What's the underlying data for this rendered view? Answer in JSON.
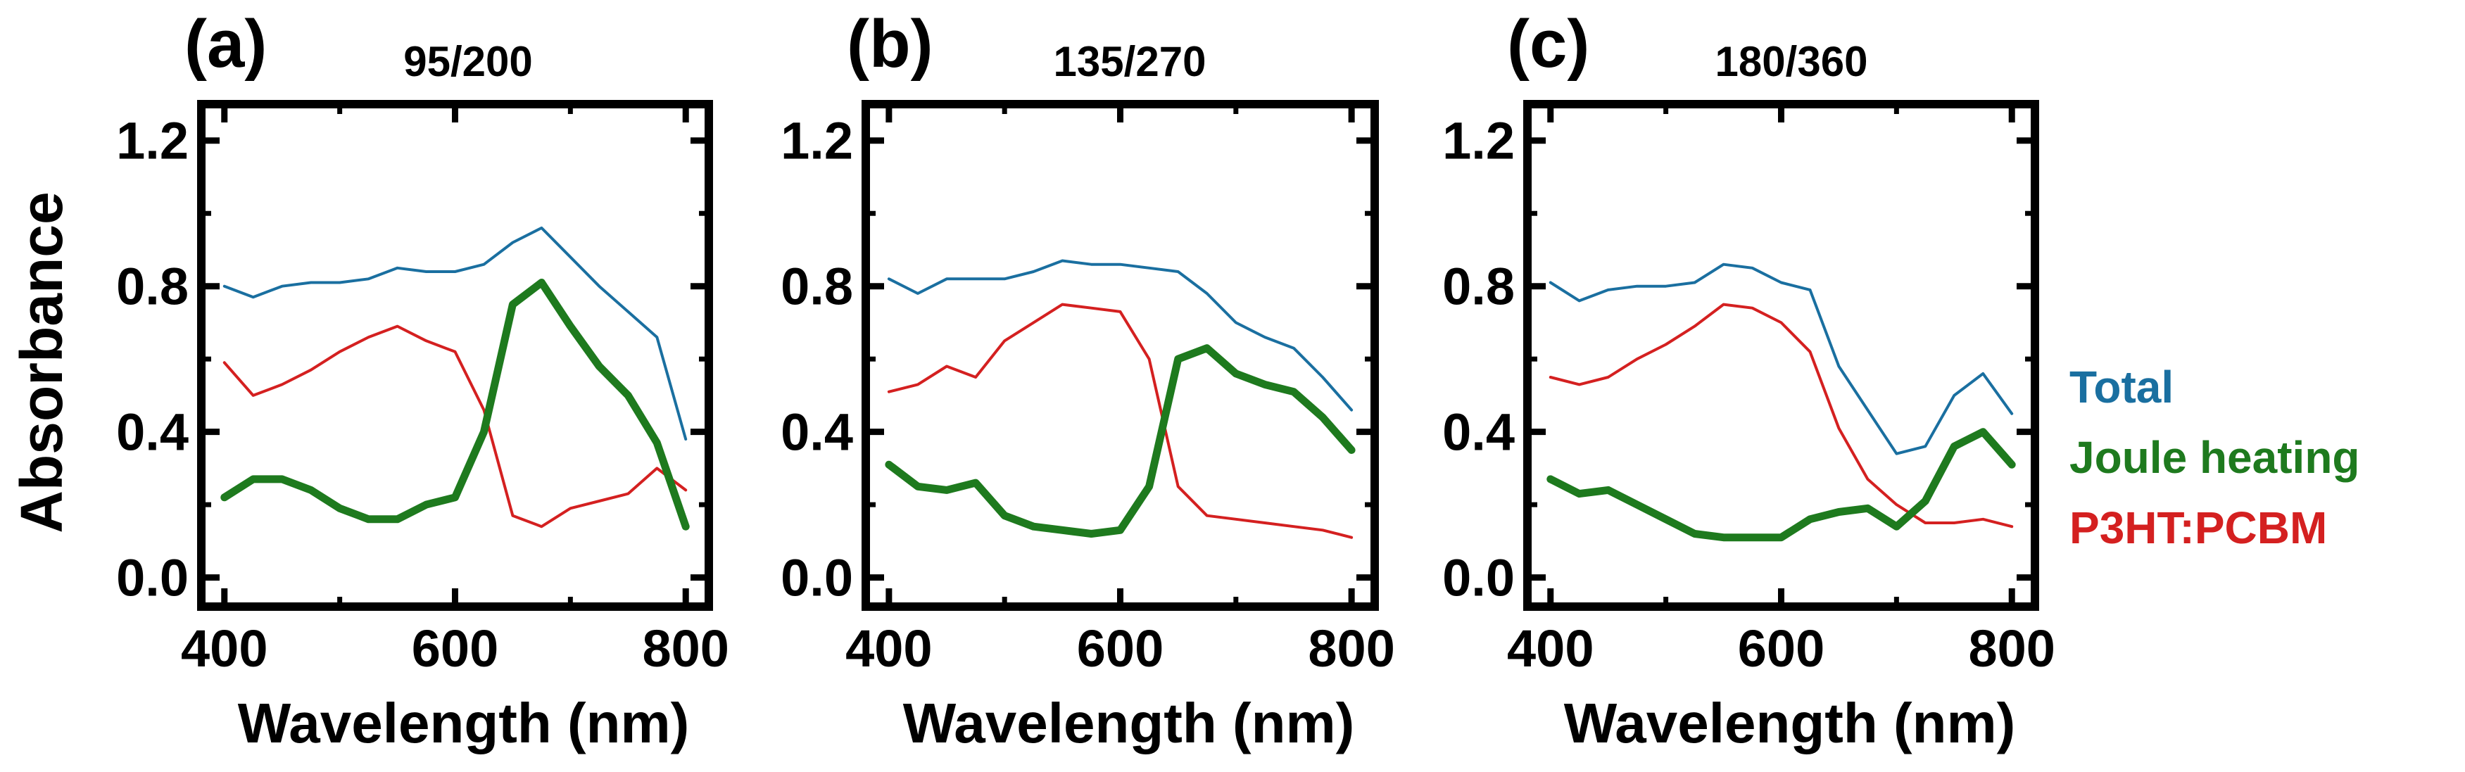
{
  "ylabel": "Absorbance",
  "legend": [
    {
      "label": "Total",
      "color": "#1a6fa0"
    },
    {
      "label": "Joule heating",
      "color": "#1e7a1e"
    },
    {
      "label": "P3HT:PCBM",
      "color": "#d42020"
    }
  ],
  "chart_data": [
    {
      "type": "line",
      "panel": "(a)",
      "title": "95/200",
      "xlabel": "Wavelength (nm)",
      "ylabel": "Absorbance",
      "xlim": [
        380,
        820
      ],
      "ylim": [
        -0.08,
        1.3
      ],
      "xticks": [
        "400",
        "600",
        "800"
      ],
      "yticks": [
        "0.0",
        "0.4",
        "0.8",
        "1.2"
      ],
      "x": [
        400,
        425,
        450,
        475,
        500,
        525,
        550,
        575,
        600,
        625,
        650,
        675,
        700,
        725,
        750,
        775,
        800
      ],
      "series": [
        {
          "name": "Total",
          "values": [
            0.8,
            0.77,
            0.8,
            0.81,
            0.81,
            0.82,
            0.85,
            0.84,
            0.84,
            0.86,
            0.92,
            0.96,
            0.88,
            0.8,
            0.73,
            0.66,
            0.38
          ]
        },
        {
          "name": "Joule heating",
          "values": [
            0.22,
            0.27,
            0.27,
            0.24,
            0.19,
            0.16,
            0.16,
            0.2,
            0.22,
            0.4,
            0.75,
            0.81,
            0.69,
            0.58,
            0.5,
            0.37,
            0.14
          ]
        },
        {
          "name": "P3HT:PCBM",
          "values": [
            0.59,
            0.5,
            0.53,
            0.57,
            0.62,
            0.66,
            0.69,
            0.65,
            0.62,
            0.46,
            0.17,
            0.14,
            0.19,
            0.21,
            0.23,
            0.3,
            0.24
          ]
        }
      ]
    },
    {
      "type": "line",
      "panel": "(b)",
      "title": "135/270",
      "xlabel": "Wavelength (nm)",
      "ylabel": "",
      "xlim": [
        380,
        820
      ],
      "ylim": [
        -0.08,
        1.3
      ],
      "xticks": [
        "400",
        "600",
        "800"
      ],
      "yticks": [
        "0.0",
        "0.4",
        "0.8",
        "1.2"
      ],
      "x": [
        400,
        425,
        450,
        475,
        500,
        525,
        550,
        575,
        600,
        625,
        650,
        675,
        700,
        725,
        750,
        775,
        800
      ],
      "series": [
        {
          "name": "Total",
          "values": [
            0.82,
            0.78,
            0.82,
            0.82,
            0.82,
            0.84,
            0.87,
            0.86,
            0.86,
            0.85,
            0.84,
            0.78,
            0.7,
            0.66,
            0.63,
            0.55,
            0.46
          ]
        },
        {
          "name": "Joule heating",
          "values": [
            0.31,
            0.25,
            0.24,
            0.26,
            0.17,
            0.14,
            0.13,
            0.12,
            0.13,
            0.25,
            0.6,
            0.63,
            0.56,
            0.53,
            0.51,
            0.44,
            0.35
          ]
        },
        {
          "name": "P3HT:PCBM",
          "values": [
            0.51,
            0.53,
            0.58,
            0.55,
            0.65,
            0.7,
            0.75,
            0.74,
            0.73,
            0.6,
            0.25,
            0.17,
            0.16,
            0.15,
            0.14,
            0.13,
            0.11
          ]
        }
      ]
    },
    {
      "type": "line",
      "panel": "(c)",
      "title": "180/360",
      "xlabel": "Wavelength (nm)",
      "ylabel": "",
      "xlim": [
        380,
        820
      ],
      "ylim": [
        -0.08,
        1.3
      ],
      "xticks": [
        "400",
        "600",
        "800"
      ],
      "yticks": [
        "0.0",
        "0.4",
        "0.8",
        "1.2"
      ],
      "x": [
        400,
        425,
        450,
        475,
        500,
        525,
        550,
        575,
        600,
        625,
        650,
        675,
        700,
        725,
        750,
        775,
        800
      ],
      "series": [
        {
          "name": "Total",
          "values": [
            0.81,
            0.76,
            0.79,
            0.8,
            0.8,
            0.81,
            0.86,
            0.85,
            0.81,
            0.79,
            0.58,
            0.46,
            0.34,
            0.36,
            0.5,
            0.56,
            0.45
          ]
        },
        {
          "name": "Joule heating",
          "values": [
            0.27,
            0.23,
            0.24,
            0.2,
            0.16,
            0.12,
            0.11,
            0.11,
            0.11,
            0.16,
            0.18,
            0.19,
            0.14,
            0.21,
            0.36,
            0.4,
            0.31
          ]
        },
        {
          "name": "P3HT:PCBM",
          "values": [
            0.55,
            0.53,
            0.55,
            0.6,
            0.64,
            0.69,
            0.75,
            0.74,
            0.7,
            0.62,
            0.41,
            0.27,
            0.2,
            0.15,
            0.15,
            0.16,
            0.14
          ]
        }
      ]
    }
  ]
}
